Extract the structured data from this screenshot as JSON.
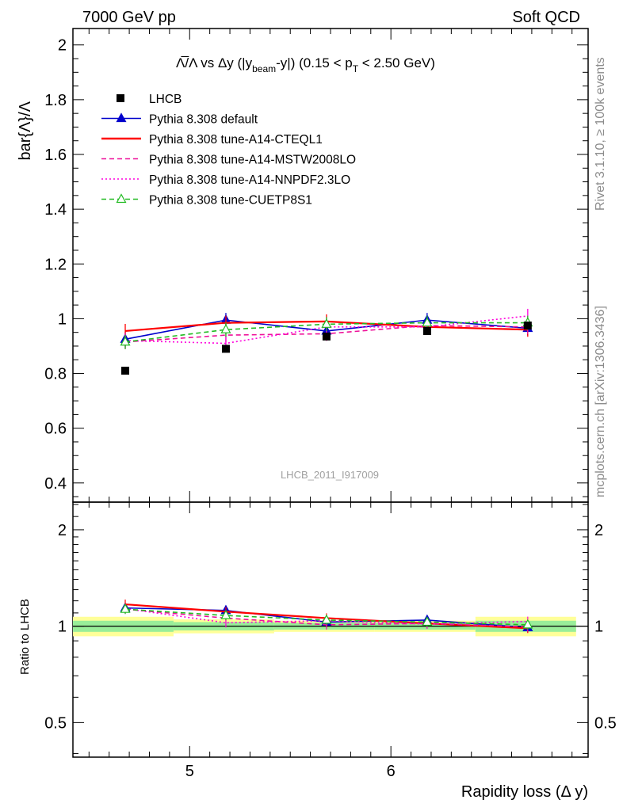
{
  "header": {
    "left": "7000 GeV pp",
    "right": "Soft QCD"
  },
  "side_labels": {
    "rivet": "Rivet 3.1.10, ≥ 100k events",
    "site": "mcplots.cern.ch [arXiv:1306.3436]"
  },
  "watermark": "LHCB_2011_I917009",
  "chart_data": [
    {
      "type": "line",
      "panel": "main",
      "title": "Λ̅/Λ vs Δy (|y_beam-y|) (0.15 < p_T < 2.50 GeV)",
      "title_parts": {
        "a": "Λ̅/Λ vs Δy (|y",
        "sub1": "beam",
        "b": "-y|) (0.15 < p",
        "sub2": "T",
        "c": " < 2.50 GeV)"
      },
      "ylabel": "bar{Λ}/Λ",
      "xlabel": "",
      "xlim": [
        4.42,
        6.98
      ],
      "ylim": [
        0.33,
        2.06
      ],
      "yticks": [
        0.4,
        0.6,
        0.8,
        1,
        1.2,
        1.4,
        1.6,
        1.8,
        2
      ],
      "ytick_labels": [
        "0.4",
        "0.6",
        "0.8",
        "1",
        "1.2",
        "1.4",
        "1.6",
        "1.8",
        "2"
      ],
      "x": [
        4.68,
        5.18,
        5.68,
        6.18,
        6.68
      ],
      "data_series": {
        "name": "LHCB",
        "values": [
          0.81,
          0.89,
          0.935,
          0.955,
          0.975
        ],
        "marker": "square",
        "color": "#000000"
      },
      "series": [
        {
          "name": "Pythia 8.308 default",
          "values": [
            0.925,
            0.995,
            0.955,
            0.995,
            0.965
          ],
          "color": "#0000cc",
          "dash": "solid",
          "marker": "triangle"
        },
        {
          "name": "Pythia 8.308 tune-A14-CTEQL1",
          "values": [
            0.955,
            0.985,
            0.99,
            0.97,
            0.96
          ],
          "color": "#ff0000",
          "dash": "solid",
          "marker": "none"
        },
        {
          "name": "Pythia 8.308 tune-A14-MSTW2008LO",
          "values": [
            0.915,
            0.94,
            0.945,
            0.975,
            0.97
          ],
          "color": "#ee1199",
          "dash": "dashed",
          "marker": "none"
        },
        {
          "name": "Pythia 8.308 tune-A14-NNPDF2.3LO",
          "values": [
            0.92,
            0.91,
            0.97,
            0.97,
            1.01
          ],
          "color": "#ff00dd",
          "dash": "dotted",
          "marker": "none"
        },
        {
          "name": "Pythia 8.308 tune-CUETP8S1",
          "values": [
            0.915,
            0.96,
            0.98,
            0.985,
            0.985
          ],
          "color": "#22bb22",
          "dash": "dashed",
          "marker": "open-triangle"
        }
      ],
      "legend_placement": "top-left"
    },
    {
      "type": "line",
      "panel": "ratio",
      "ylabel": "Ratio to LHCB",
      "xlabel": "Rapidity loss (Δ y)",
      "xlim": [
        4.42,
        6.98
      ],
      "ylim": [
        0.39,
        2.44
      ],
      "log_y": true,
      "xticks": [
        5,
        6
      ],
      "xtick_labels": [
        "5",
        "6"
      ],
      "yticks": [
        0.5,
        1,
        2
      ],
      "ytick_labels": [
        "0.5",
        "1",
        "2"
      ],
      "x": [
        4.68,
        5.18,
        5.68,
        6.18,
        6.68
      ],
      "x_bins": [
        [
          4.42,
          4.92
        ],
        [
          4.92,
          5.42
        ],
        [
          5.42,
          5.92
        ],
        [
          5.92,
          6.42
        ],
        [
          6.42,
          6.92
        ]
      ],
      "band_inner": [
        [
          0.96,
          1.04
        ],
        [
          0.97,
          1.03
        ],
        [
          0.975,
          1.025
        ],
        [
          0.975,
          1.025
        ],
        [
          0.96,
          1.04
        ]
      ],
      "band_outer": [
        [
          0.93,
          1.07
        ],
        [
          0.95,
          1.05
        ],
        [
          0.96,
          1.04
        ],
        [
          0.96,
          1.04
        ],
        [
          0.93,
          1.07
        ]
      ],
      "series": [
        {
          "name": "Pythia 8.308 default",
          "values": [
            1.14,
            1.12,
            1.03,
            1.045,
            0.99
          ]
        },
        {
          "name": "Pythia 8.308 tune-A14-CTEQL1",
          "values": [
            1.17,
            1.11,
            1.06,
            1.02,
            0.985
          ]
        },
        {
          "name": "Pythia 8.308 tune-A14-MSTW2008LO",
          "values": [
            1.13,
            1.06,
            1.01,
            1.02,
            0.995
          ]
        },
        {
          "name": "Pythia 8.308 tune-A14-NNPDF2.3LO",
          "values": [
            1.135,
            1.025,
            1.04,
            1.015,
            1.035
          ]
        },
        {
          "name": "Pythia 8.308 tune-CUETP8S1",
          "values": [
            1.13,
            1.08,
            1.045,
            1.03,
            1.01
          ]
        }
      ]
    }
  ]
}
